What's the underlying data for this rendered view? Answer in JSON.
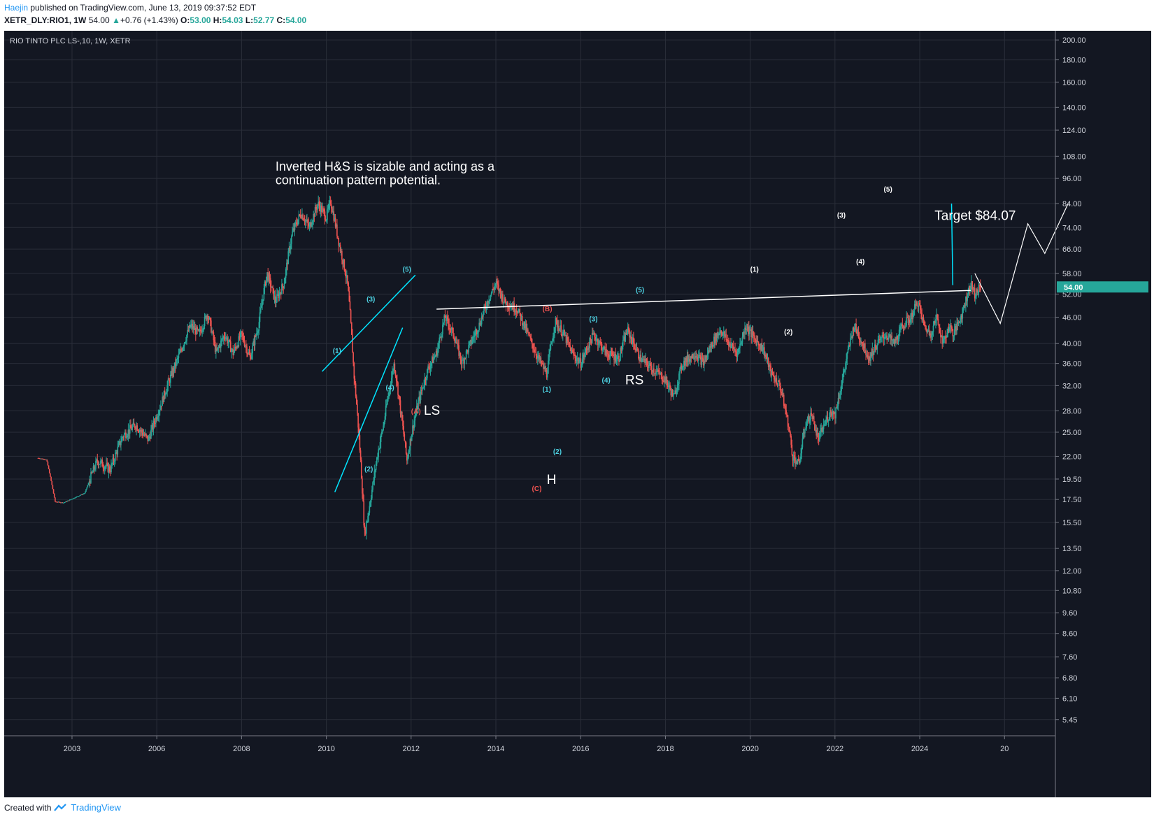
{
  "header": {
    "author": "Haejin",
    "published": "published on TradingView.com, June 13, 2019 09:37:52 EDT",
    "symbol_line": "XETR_DLY:RIO1, 1W",
    "last": "54.00",
    "change": "+0.76 (+1.43%)",
    "open_label": "O:",
    "open": "53.00",
    "high_label": "H:",
    "high": "54.03",
    "low_label": "L:",
    "low": "52.77",
    "close_label": "C:",
    "close": "54.00"
  },
  "footer": {
    "created_with": "Created with",
    "brand": "TradingView"
  },
  "colors": {
    "background": "#131722",
    "grid": "#2a2e39",
    "up": "#26a69a",
    "down": "#ef5350",
    "wave_cyan": "#00e5ff",
    "label_cyan": "#4dd0e1",
    "label_red": "#ef5350",
    "white": "#ffffff",
    "axis_text": "#d1d4dc",
    "price_tag": "#26a69a"
  },
  "chart_data": {
    "type": "candlestick",
    "title": "RIO TINTO PLC LS-,10, 1W, XETR",
    "y_scale": "log",
    "ylim": [
      5.0,
      210
    ],
    "xlim": [
      2001.4,
      2026.2
    ],
    "y_ticks": [
      "200.00",
      "180.00",
      "160.00",
      "140.00",
      "124.00",
      "108.00",
      "96.00",
      "84.00",
      "74.00",
      "66.00",
      "58.00",
      "52.00",
      "46.00",
      "40.00",
      "36.00",
      "32.00",
      "28.00",
      "25.00",
      "22.00",
      "19.50",
      "17.50",
      "15.50",
      "13.50",
      "12.00",
      "10.80",
      "9.60",
      "8.60",
      "7.60",
      "6.80",
      "6.10",
      "5.45"
    ],
    "x_ticks": [
      "2003",
      "2006",
      "2008",
      "2010",
      "2012",
      "2014",
      "2016",
      "2018",
      "2020",
      "2022",
      "2024",
      "20"
    ],
    "x_tick_years": [
      2003.0,
      2005.0,
      2007.0,
      2009.0,
      2011.0,
      2013.0,
      2015.0,
      2017.0,
      2019.0,
      2021.0,
      2023.0,
      2025.0
    ],
    "current_price": "54.00",
    "price_path": [
      [
        2002.2,
        21.8
      ],
      [
        2002.4,
        21.6
      ],
      [
        2002.6,
        17.3
      ],
      [
        2002.8,
        17.2
      ],
      [
        2003.3,
        18.1
      ],
      [
        2003.6,
        21.5
      ],
      [
        2003.9,
        20.5
      ],
      [
        2004.2,
        24.5
      ],
      [
        2004.5,
        26.0
      ],
      [
        2004.8,
        24.0
      ],
      [
        2005.1,
        29.0
      ],
      [
        2005.3,
        33.0
      ],
      [
        2005.5,
        37.0
      ],
      [
        2005.8,
        44.0
      ],
      [
        2006.0,
        42.0
      ],
      [
        2006.2,
        47.0
      ],
      [
        2006.4,
        38.0
      ],
      [
        2006.6,
        42.0
      ],
      [
        2006.8,
        38.0
      ],
      [
        2007.0,
        42.0
      ],
      [
        2007.2,
        37.0
      ],
      [
        2007.4,
        44.0
      ],
      [
        2007.6,
        58.0
      ],
      [
        2007.8,
        50.0
      ],
      [
        2008.0,
        55.0
      ],
      [
        2008.2,
        72.0
      ],
      [
        2008.4,
        80.0
      ],
      [
        2008.6,
        74.0
      ],
      [
        2008.8,
        84.0
      ],
      [
        2009.0,
        78.0
      ],
      [
        2009.1,
        85.0
      ],
      [
        2009.3,
        68.0
      ],
      [
        2009.5,
        55.0
      ],
      [
        2009.65,
        34.0
      ],
      [
        2009.8,
        22.0
      ],
      [
        2009.9,
        14.5
      ],
      [
        2010.0,
        16.5
      ],
      [
        2010.1,
        19.0
      ],
      [
        2010.2,
        22.0
      ],
      [
        2010.35,
        26.0
      ],
      [
        2010.5,
        32.0
      ],
      [
        2010.6,
        36.0
      ],
      [
        2010.75,
        28.0
      ],
      [
        2010.9,
        21.5
      ],
      [
        2011.05,
        26.0
      ],
      [
        2011.2,
        30.0
      ],
      [
        2011.4,
        35.0
      ],
      [
        2011.6,
        38.0
      ],
      [
        2011.8,
        46.0
      ],
      [
        2012.0,
        42.0
      ],
      [
        2012.2,
        36.0
      ],
      [
        2012.4,
        40.0
      ],
      [
        2012.6,
        44.0
      ],
      [
        2012.8,
        50.0
      ],
      [
        2013.0,
        55.0
      ],
      [
        2013.2,
        50.0
      ],
      [
        2013.5,
        48.0
      ],
      [
        2013.8,
        41.0
      ],
      [
        2014.0,
        37.0
      ],
      [
        2014.2,
        34.0
      ],
      [
        2014.4,
        45.0
      ],
      [
        2014.6,
        42.0
      ],
      [
        2014.8,
        38.0
      ],
      [
        2015.0,
        36.0
      ],
      [
        2015.3,
        42.0
      ],
      [
        2015.6,
        38.0
      ],
      [
        2015.9,
        37.0
      ],
      [
        2016.1,
        43.0
      ],
      [
        2016.4,
        37.0
      ],
      [
        2016.7,
        35.0
      ],
      [
        2017.0,
        33.0
      ],
      [
        2017.2,
        30.0
      ],
      [
        2017.4,
        36.0
      ],
      [
        2017.7,
        38.0
      ],
      [
        2017.9,
        36.0
      ],
      [
        2018.1,
        40.0
      ],
      [
        2018.3,
        43.0
      ],
      [
        2018.5,
        40.0
      ],
      [
        2018.7,
        38.0
      ],
      [
        2018.9,
        44.0
      ],
      [
        2019.1,
        41.0
      ],
      [
        2019.3,
        39.0
      ],
      [
        2019.5,
        34.0
      ],
      [
        2019.7,
        32.0
      ],
      [
        2019.9,
        26.0
      ],
      [
        2020.0,
        22.0
      ],
      [
        2020.15,
        21.0
      ],
      [
        2020.3,
        26.0
      ],
      [
        2020.45,
        27.5
      ],
      [
        2020.6,
        24.0
      ],
      [
        2020.75,
        26.0
      ],
      [
        2020.9,
        28.0
      ],
      [
        2021.0,
        27.5
      ],
      [
        2021.15,
        32.0
      ],
      [
        2021.3,
        38.0
      ],
      [
        2021.45,
        44.0
      ],
      [
        2021.6,
        41.0
      ],
      [
        2021.8,
        37.0
      ],
      [
        2022.0,
        40.0
      ],
      [
        2022.2,
        42.0
      ],
      [
        2022.4,
        40.0
      ],
      [
        2022.6,
        44.0
      ],
      [
        2022.8,
        46.0
      ],
      [
        2022.95,
        50.0
      ],
      [
        2023.1,
        44.0
      ],
      [
        2023.25,
        42.0
      ],
      [
        2023.4,
        46.0
      ],
      [
        2023.55,
        40.0
      ],
      [
        2023.7,
        44.0
      ],
      [
        2023.8,
        42.0
      ],
      [
        2024.0,
        47.0
      ],
      [
        2024.2,
        55.0
      ],
      [
        2024.3,
        52.0
      ],
      [
        2024.45,
        54.0
      ]
    ],
    "annotations": [
      {
        "text": "Inverted H&S is sizable and acting as a",
        "x": 2007.8,
        "y": 100,
        "color": "white",
        "size": 18
      },
      {
        "text": "continuation pattern potential.",
        "x": 2007.8,
        "y": 93,
        "color": "white",
        "size": 18
      },
      {
        "text": "Target $84.07",
        "x": 2023.35,
        "y": 77,
        "color": "white",
        "size": 19
      },
      {
        "text": "LS",
        "x": 2011.3,
        "y": 27.4,
        "color": "white",
        "size": 19
      },
      {
        "text": "H",
        "x": 2014.2,
        "y": 19.0,
        "color": "white",
        "size": 19
      },
      {
        "text": "RS",
        "x": 2016.05,
        "y": 32.2,
        "color": "white",
        "size": 19
      },
      {
        "text": "(1)",
        "x": 2009.15,
        "y": 38.0,
        "color": "cyan",
        "size": 10
      },
      {
        "text": "(2)",
        "x": 2009.9,
        "y": 20.3,
        "color": "cyan",
        "size": 10
      },
      {
        "text": "(3)",
        "x": 2009.95,
        "y": 50.0,
        "color": "cyan",
        "size": 10
      },
      {
        "text": "(4)",
        "x": 2010.4,
        "y": 31.3,
        "color": "cyan",
        "size": 10
      },
      {
        "text": "(5)",
        "x": 2010.8,
        "y": 58.5,
        "color": "cyan",
        "size": 10
      },
      {
        "text": "(A)",
        "x": 2011.0,
        "y": 27.6,
        "color": "red",
        "size": 10
      },
      {
        "text": "(B)",
        "x": 2014.1,
        "y": 47.5,
        "color": "red",
        "size": 10
      },
      {
        "text": "(C)",
        "x": 2013.85,
        "y": 18.3,
        "color": "red",
        "size": 10
      },
      {
        "text": "(1)",
        "x": 2014.1,
        "y": 31.0,
        "color": "cyan",
        "size": 10
      },
      {
        "text": "(2)",
        "x": 2014.35,
        "y": 22.3,
        "color": "cyan",
        "size": 10
      },
      {
        "text": "(3)",
        "x": 2015.2,
        "y": 45.0,
        "color": "cyan",
        "size": 10
      },
      {
        "text": "(4)",
        "x": 2015.5,
        "y": 32.5,
        "color": "cyan",
        "size": 10
      },
      {
        "text": "(5)",
        "x": 2016.3,
        "y": 52.5,
        "color": "cyan",
        "size": 10
      },
      {
        "text": "(1)",
        "x": 2019.0,
        "y": 58.5,
        "color": "white",
        "size": 10
      },
      {
        "text": "(2)",
        "x": 2019.8,
        "y": 42.0,
        "color": "white",
        "size": 10
      },
      {
        "text": "(3)",
        "x": 2021.05,
        "y": 78.0,
        "color": "white",
        "size": 10
      },
      {
        "text": "(4)",
        "x": 2021.5,
        "y": 61.0,
        "color": "white",
        "size": 10
      },
      {
        "text": "(5)",
        "x": 2022.15,
        "y": 89.5,
        "color": "white",
        "size": 10
      }
    ],
    "trendlines": [
      {
        "color": "cyan",
        "points": [
          [
            2008.9,
            34.5
          ],
          [
            2011.1,
            57.5
          ]
        ]
      },
      {
        "color": "cyan",
        "points": [
          [
            2009.2,
            18.2
          ],
          [
            2010.8,
            43.5
          ]
        ]
      },
      {
        "color": "cyan",
        "points": [
          [
            2023.75,
            84.0
          ],
          [
            2023.78,
            54.5
          ]
        ]
      },
      {
        "color": "white",
        "points": [
          [
            2011.6,
            48.0
          ],
          [
            2024.2,
            53.0
          ]
        ]
      }
    ],
    "projection": {
      "color": "white",
      "points": [
        [
          2024.3,
          58.0
        ],
        [
          2024.9,
          44.5
        ],
        [
          2025.55,
          75.5
        ],
        [
          2025.95,
          64.5
        ],
        [
          2026.5,
          84.0
        ]
      ]
    }
  }
}
